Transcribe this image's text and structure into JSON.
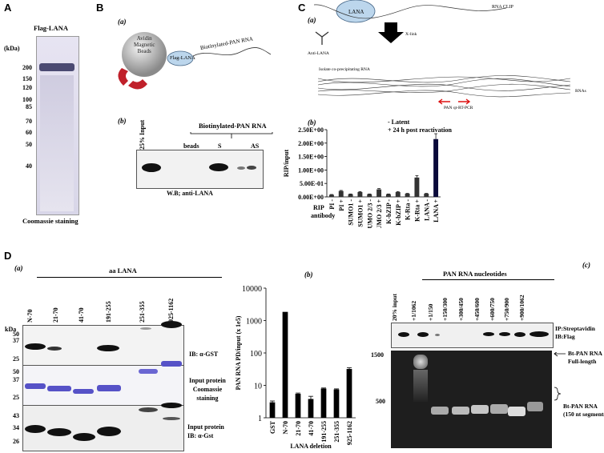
{
  "panels": {
    "A": "A",
    "B": "B",
    "C": "C",
    "D": "D"
  },
  "A": {
    "title": "Flag-LANA",
    "unit": "(kDa)",
    "markers": [
      "200",
      "150",
      "120",
      "100",
      "85",
      "70",
      "60",
      "50",
      "40"
    ],
    "caption": "Coomassie staining"
  },
  "B": {
    "sub_a": "(a)",
    "sub_b": "(b)",
    "bead_label": [
      "Avidin",
      "Magnetic",
      "Beads"
    ],
    "protein": "Flag-LANA",
    "rna": "Biotinylated-PAN RNA",
    "input": "25% Input",
    "group": "Biotinylated-PAN RNA",
    "lanes": [
      "beads",
      "S",
      "AS"
    ],
    "caption": "W.B; anti-LANA"
  },
  "C": {
    "sub_a": "(a)",
    "sub_b": "(b)",
    "lana": "LANA",
    "rna_clip": "RNA CLIP",
    "xlink": "X-link",
    "anti_lana": "Anti-LANA",
    "isolate": "Isolate co-precipitating RNA",
    "rnas": "RNAs",
    "qpcr": "PAN qt-RT-PCR",
    "legend": [
      "- Latent",
      "+ 24 h post reactivation"
    ],
    "xaxis_title": [
      "RIP",
      "antibody"
    ]
  },
  "D": {
    "sub_a": "(a)",
    "sub_b": "(b)",
    "sub_c": "(c)",
    "aa_title": "aa LANA",
    "constructs": [
      "N-70",
      "21-70",
      "41-70",
      "191-255",
      "251-355",
      "925-1162"
    ],
    "kda": "kDa",
    "markers_top": [
      "50",
      "37",
      "25"
    ],
    "markers_mid": [
      "50",
      "37",
      "25"
    ],
    "markers_bot": [
      "43",
      "34",
      "26"
    ],
    "label_top": "IB: α-GST",
    "label_mid": [
      "Input protein",
      "Coomassie",
      "staining"
    ],
    "label_bot": [
      "Input protein",
      "IB: α-Gst"
    ],
    "pan_title": "PAN RNA nucleotides",
    "pan_lanes": [
      "20% input",
      "+1/1062",
      "+1/150",
      "+150/300",
      "+300/450",
      "+450/600",
      "+600/750",
      "+750/900",
      "+900/1062"
    ],
    "ip_label": [
      "IP:Streptavidin",
      "IB:Flag"
    ],
    "gel_markers": [
      "1500",
      "500"
    ],
    "full_label": [
      "Bt-PAN RNA",
      "Full-length"
    ],
    "seg_label": [
      "Bt-PAN RNA",
      "(150 nt segments)"
    ]
  },
  "chart_data": [
    {
      "type": "bar",
      "panel": "C(b)",
      "ylabel": "RIP/input",
      "ylim": [
        0,
        2.5
      ],
      "ytick_labels": [
        "0.00E+00",
        "5.00E-01",
        "1.00E+00",
        "1.50E+00",
        "2.00E+00",
        "2.50E+00"
      ],
      "categories": [
        "PI -",
        "PI +",
        "SUMO1 -",
        "SUMO1 +",
        "SUMO 2/3 -",
        "SUMO 2/3 +",
        "K-bZIP -",
        "K-bZIP +",
        "K-Rta -",
        "K-Rta +",
        "LANA -",
        "LANA +"
      ],
      "values": [
        0.08,
        0.22,
        0.1,
        0.18,
        0.1,
        0.28,
        0.1,
        0.18,
        0.12,
        0.72,
        0.12,
        2.15
      ],
      "errors": [
        0.01,
        0.02,
        0.01,
        0.02,
        0.01,
        0.03,
        0.01,
        0.02,
        0.01,
        0.07,
        0.01,
        0.2
      ],
      "bar_colors": [
        "#333333",
        "#333333",
        "#333333",
        "#333333",
        "#333333",
        "#333333",
        "#333333",
        "#333333",
        "#333333",
        "#333333",
        "#333333",
        "#0a0a3a"
      ]
    },
    {
      "type": "bar",
      "panel": "D(b)",
      "ylabel": "PAN RNA PD/input (x 1e5)",
      "xlabel": "LANA deletion",
      "yscale": "log",
      "ylim": [
        1,
        10000
      ],
      "ytick_labels": [
        "1",
        "10",
        "100",
        "1000",
        "10000"
      ],
      "categories": [
        "GST",
        "N-70",
        "21-70",
        "41-70",
        "191-255",
        "251-355",
        "925-1162"
      ],
      "values": [
        3,
        1850,
        5.5,
        3.8,
        8,
        7.5,
        32
      ],
      "errors": [
        0.3,
        0,
        0.3,
        0.8,
        0.3,
        0.3,
        3
      ]
    }
  ]
}
